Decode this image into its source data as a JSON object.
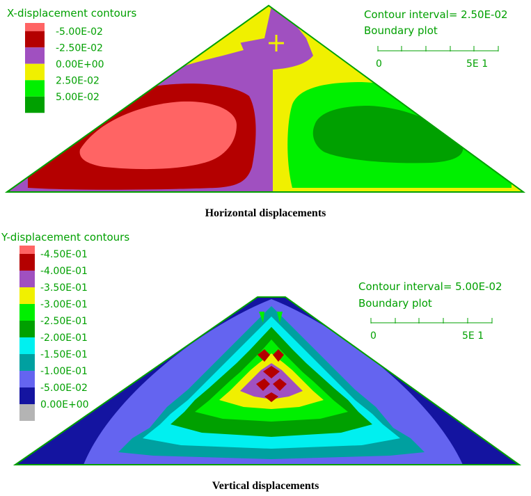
{
  "colors": {
    "text": "#00a000",
    "boundary": "#00a000",
    "gray": "#b4b4b4",
    "navy": "#1414a0",
    "blue": "#6464f0",
    "teal": "#00a0a0",
    "cyan": "#00f0f0",
    "dark_green": "#00a000",
    "green": "#00f000",
    "yellow": "#f0f000",
    "purple": "#a050c0",
    "dark_red": "#b40000",
    "salmon": "#ff6464"
  },
  "horizontal": {
    "legend_title": "X-displacement contours",
    "legend": [
      {
        "label": "-5.00E-02",
        "color": "#b40000"
      },
      {
        "label": "-2.50E-02",
        "color": "#a050c0"
      },
      {
        "label": "0.00E+00",
        "color": "#f0f000"
      },
      {
        "label": "2.50E-02",
        "color": "#00f000"
      },
      {
        "label": "5.00E-02",
        "color": "#00a000"
      }
    ],
    "top_swatch_color": "#ff6464",
    "contour_interval": "Contour interval=  2.50E-02",
    "boundary_plot": "Boundary plot",
    "scale_start": "0",
    "scale_end": "5E  1",
    "caption": "Horizontal displacements"
  },
  "vertical": {
    "legend_title": "Y-displacement contours",
    "legend": [
      {
        "label": "-4.50E-01",
        "color": "#b40000"
      },
      {
        "label": "-4.00E-01",
        "color": "#a050c0"
      },
      {
        "label": "-3.50E-01",
        "color": "#f0f000"
      },
      {
        "label": "-3.00E-01",
        "color": "#00f000"
      },
      {
        "label": "-2.50E-01",
        "color": "#00a000"
      },
      {
        "label": "-2.00E-01",
        "color": "#00f0f0"
      },
      {
        "label": "-1.50E-01",
        "color": "#00a0a0"
      },
      {
        "label": "-1.00E-01",
        "color": "#6464f0"
      },
      {
        "label": "-5.00E-02",
        "color": "#1414a0"
      },
      {
        "label": "0.00E+00",
        "color": "#b4b4b4"
      }
    ],
    "top_swatch_color": "#ff6464",
    "contour_interval": "Contour interval=  5.00E-02",
    "boundary_plot": "Boundary plot",
    "scale_start": "0",
    "scale_end": "5E  1",
    "caption": "Vertical displacements"
  }
}
